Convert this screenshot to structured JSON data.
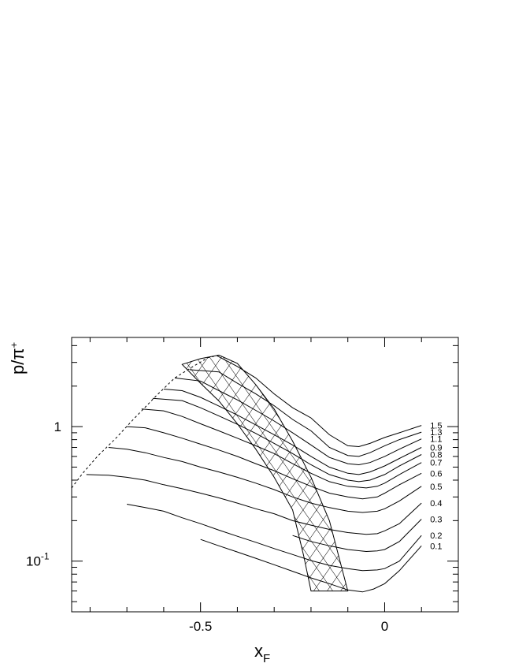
{
  "chart_data": {
    "type": "line",
    "y_scale": "log",
    "xlabel": "x",
    "xlabel_sub": "F",
    "ylabel": "p/π",
    "ylabel_sup": "+",
    "xlim": [
      -0.85,
      0.2
    ],
    "ylim": [
      0.042,
      4.6
    ],
    "x_ticks": [
      {
        "value": -0.5,
        "label": "-0.5"
      },
      {
        "value": 0,
        "label": "0"
      }
    ],
    "y_ticks": [
      {
        "value": 1,
        "label": "1",
        "sup": ""
      },
      {
        "value": 0.1,
        "label": "10",
        "sup": "-1"
      }
    ],
    "series": [
      {
        "name": "1.5",
        "points": [
          [
            -0.455,
            3.36
          ],
          [
            -0.4,
            2.8
          ],
          [
            -0.35,
            2.3
          ],
          [
            -0.3,
            1.75
          ],
          [
            -0.25,
            1.38
          ],
          [
            -0.2,
            1.16
          ],
          [
            -0.15,
            0.87
          ],
          [
            -0.1,
            0.72
          ],
          [
            -0.07,
            0.71
          ],
          [
            -0.04,
            0.75
          ],
          [
            0,
            0.83
          ],
          [
            0.04,
            0.9
          ],
          [
            0.1,
            1.02
          ]
        ]
      },
      {
        "name": "1.3",
        "points": [
          [
            -0.53,
            2.65
          ],
          [
            -0.45,
            2.55
          ],
          [
            -0.4,
            2.1
          ],
          [
            -0.35,
            1.75
          ],
          [
            -0.3,
            1.43
          ],
          [
            -0.25,
            1.13
          ],
          [
            -0.2,
            0.93
          ],
          [
            -0.15,
            0.7
          ],
          [
            -0.1,
            0.61
          ],
          [
            -0.07,
            0.6
          ],
          [
            -0.04,
            0.64
          ],
          [
            0,
            0.72
          ],
          [
            0.04,
            0.8
          ],
          [
            0.1,
            0.91
          ]
        ]
      },
      {
        "name": "1.1",
        "points": [
          [
            -0.57,
            2.3
          ],
          [
            -0.5,
            2.18
          ],
          [
            -0.45,
            1.85
          ],
          [
            -0.4,
            1.58
          ],
          [
            -0.35,
            1.32
          ],
          [
            -0.3,
            1.1
          ],
          [
            -0.25,
            0.9
          ],
          [
            -0.2,
            0.73
          ],
          [
            -0.15,
            0.59
          ],
          [
            -0.1,
            0.53
          ],
          [
            -0.07,
            0.52
          ],
          [
            -0.04,
            0.54
          ],
          [
            0,
            0.6
          ],
          [
            0.04,
            0.68
          ],
          [
            0.1,
            0.81
          ]
        ]
      },
      {
        "name": "0.9",
        "points": [
          [
            -0.6,
            1.9
          ],
          [
            -0.55,
            1.85
          ],
          [
            -0.5,
            1.65
          ],
          [
            -0.45,
            1.42
          ],
          [
            -0.4,
            1.22
          ],
          [
            -0.35,
            1.03
          ],
          [
            -0.3,
            0.87
          ],
          [
            -0.25,
            0.73
          ],
          [
            -0.2,
            0.6
          ],
          [
            -0.15,
            0.5
          ],
          [
            -0.1,
            0.45
          ],
          [
            -0.07,
            0.44
          ],
          [
            -0.04,
            0.46
          ],
          [
            0,
            0.51
          ],
          [
            0.04,
            0.58
          ],
          [
            0.1,
            0.7
          ]
        ]
      },
      {
        "name": "0.8",
        "points": [
          [
            -0.63,
            1.62
          ],
          [
            -0.55,
            1.56
          ],
          [
            -0.5,
            1.38
          ],
          [
            -0.45,
            1.2
          ],
          [
            -0.4,
            1.04
          ],
          [
            -0.35,
            0.89
          ],
          [
            -0.3,
            0.75
          ],
          [
            -0.25,
            0.63
          ],
          [
            -0.2,
            0.52
          ],
          [
            -0.15,
            0.44
          ],
          [
            -0.1,
            0.4
          ],
          [
            -0.07,
            0.39
          ],
          [
            -0.04,
            0.4
          ],
          [
            0,
            0.44
          ],
          [
            0.04,
            0.51
          ],
          [
            0.1,
            0.62
          ]
        ]
      },
      {
        "name": "0.7",
        "points": [
          [
            -0.66,
            1.35
          ],
          [
            -0.6,
            1.31
          ],
          [
            -0.55,
            1.19
          ],
          [
            -0.5,
            1.05
          ],
          [
            -0.45,
            0.93
          ],
          [
            -0.4,
            0.82
          ],
          [
            -0.35,
            0.72
          ],
          [
            -0.3,
            0.63
          ],
          [
            -0.25,
            0.53
          ],
          [
            -0.2,
            0.45
          ],
          [
            -0.15,
            0.39
          ],
          [
            -0.1,
            0.36
          ],
          [
            -0.05,
            0.35
          ],
          [
            -0.02,
            0.36
          ],
          [
            0,
            0.38
          ],
          [
            0.04,
            0.44
          ],
          [
            0.1,
            0.54
          ]
        ]
      },
      {
        "name": "0.6",
        "points": [
          [
            -0.7,
            1.0
          ],
          [
            -0.65,
            0.98
          ],
          [
            -0.6,
            0.9
          ],
          [
            -0.55,
            0.82
          ],
          [
            -0.5,
            0.74
          ],
          [
            -0.45,
            0.67
          ],
          [
            -0.4,
            0.6
          ],
          [
            -0.35,
            0.53
          ],
          [
            -0.3,
            0.47
          ],
          [
            -0.25,
            0.41
          ],
          [
            -0.2,
            0.36
          ],
          [
            -0.15,
            0.32
          ],
          [
            -0.1,
            0.3
          ],
          [
            -0.06,
            0.29
          ],
          [
            -0.02,
            0.3
          ],
          [
            0,
            0.32
          ],
          [
            0.04,
            0.37
          ],
          [
            0.1,
            0.45
          ]
        ]
      },
      {
        "name": "0.5",
        "points": [
          [
            -0.75,
            0.7
          ],
          [
            -0.7,
            0.68
          ],
          [
            -0.65,
            0.64
          ],
          [
            -0.6,
            0.59
          ],
          [
            -0.55,
            0.55
          ],
          [
            -0.5,
            0.5
          ],
          [
            -0.45,
            0.46
          ],
          [
            -0.4,
            0.42
          ],
          [
            -0.35,
            0.38
          ],
          [
            -0.3,
            0.34
          ],
          [
            -0.25,
            0.3
          ],
          [
            -0.2,
            0.27
          ],
          [
            -0.15,
            0.25
          ],
          [
            -0.1,
            0.235
          ],
          [
            -0.06,
            0.23
          ],
          [
            -0.02,
            0.235
          ],
          [
            0,
            0.245
          ],
          [
            0.04,
            0.28
          ],
          [
            0.1,
            0.36
          ]
        ]
      },
      {
        "name": "0.4",
        "points": [
          [
            -0.81,
            0.44
          ],
          [
            -0.75,
            0.435
          ],
          [
            -0.7,
            0.42
          ],
          [
            -0.65,
            0.4
          ],
          [
            -0.6,
            0.37
          ],
          [
            -0.55,
            0.345
          ],
          [
            -0.5,
            0.32
          ],
          [
            -0.45,
            0.295
          ],
          [
            -0.4,
            0.27
          ],
          [
            -0.35,
            0.245
          ],
          [
            -0.3,
            0.225
          ],
          [
            -0.25,
            0.2
          ],
          [
            -0.2,
            0.185
          ],
          [
            -0.15,
            0.172
          ],
          [
            -0.1,
            0.163
          ],
          [
            -0.05,
            0.158
          ],
          [
            -0.02,
            0.16
          ],
          [
            0,
            0.168
          ],
          [
            0.04,
            0.19
          ],
          [
            0.1,
            0.27
          ]
        ]
      },
      {
        "name": "0.3",
        "points": [
          [
            -0.25,
            0.155
          ],
          [
            -0.2,
            0.14
          ],
          [
            -0.15,
            0.13
          ],
          [
            -0.1,
            0.122
          ],
          [
            -0.05,
            0.118
          ],
          [
            -0.02,
            0.119
          ],
          [
            0,
            0.122
          ],
          [
            0.04,
            0.14
          ],
          [
            0.1,
            0.205
          ]
        ]
      },
      {
        "name": "0.2",
        "points": [
          [
            -0.7,
            0.265
          ],
          [
            -0.65,
            0.25
          ],
          [
            -0.6,
            0.235
          ],
          [
            -0.55,
            0.21
          ],
          [
            -0.5,
            0.19
          ],
          [
            -0.45,
            0.17
          ],
          [
            -0.4,
            0.153
          ],
          [
            -0.35,
            0.138
          ],
          [
            -0.3,
            0.124
          ],
          [
            -0.25,
            0.112
          ],
          [
            -0.2,
            0.101
          ],
          [
            -0.15,
            0.093
          ],
          [
            -0.1,
            0.088
          ],
          [
            -0.06,
            0.085
          ],
          [
            -0.02,
            0.086
          ],
          [
            0,
            0.088
          ],
          [
            0.04,
            0.1
          ],
          [
            0.1,
            0.155
          ]
        ]
      },
      {
        "name": "0.1",
        "points": [
          [
            -0.5,
            0.145
          ],
          [
            -0.45,
            0.13
          ],
          [
            -0.4,
            0.117
          ],
          [
            -0.35,
            0.105
          ],
          [
            -0.3,
            0.094
          ],
          [
            -0.25,
            0.084
          ],
          [
            -0.2,
            0.075
          ],
          [
            -0.15,
            0.068
          ],
          [
            -0.1,
            0.061
          ],
          [
            -0.06,
            0.059
          ],
          [
            -0.03,
            0.062
          ],
          [
            0,
            0.068
          ],
          [
            0.04,
            0.085
          ],
          [
            0.1,
            0.13
          ]
        ]
      }
    ],
    "envelope": [
      [
        -0.85,
        0.35
      ],
      [
        -0.82,
        0.45
      ],
      [
        -0.78,
        0.6
      ],
      [
        -0.73,
        0.82
      ],
      [
        -0.68,
        1.15
      ],
      [
        -0.62,
        1.7
      ],
      [
        -0.57,
        2.3
      ],
      [
        -0.52,
        2.8
      ],
      [
        -0.48,
        3.25
      ],
      [
        -0.45,
        3.4
      ]
    ],
    "band": {
      "upper_edge": [
        [
          -0.55,
          2.9
        ],
        [
          -0.5,
          3.2
        ],
        [
          -0.45,
          3.4
        ],
        [
          -0.4,
          2.95
        ],
        [
          -0.35,
          2.05
        ],
        [
          -0.3,
          1.35
        ],
        [
          -0.25,
          0.78
        ],
        [
          -0.2,
          0.42
        ],
        [
          -0.15,
          0.2
        ],
        [
          -0.1,
          0.06
        ]
      ],
      "lower_edge": [
        [
          -0.55,
          2.9
        ],
        [
          -0.5,
          2.1
        ],
        [
          -0.45,
          1.55
        ],
        [
          -0.4,
          1.05
        ],
        [
          -0.35,
          0.68
        ],
        [
          -0.3,
          0.42
        ],
        [
          -0.25,
          0.24
        ],
        [
          -0.22,
          0.11
        ],
        [
          -0.2,
          0.06
        ]
      ]
    }
  }
}
